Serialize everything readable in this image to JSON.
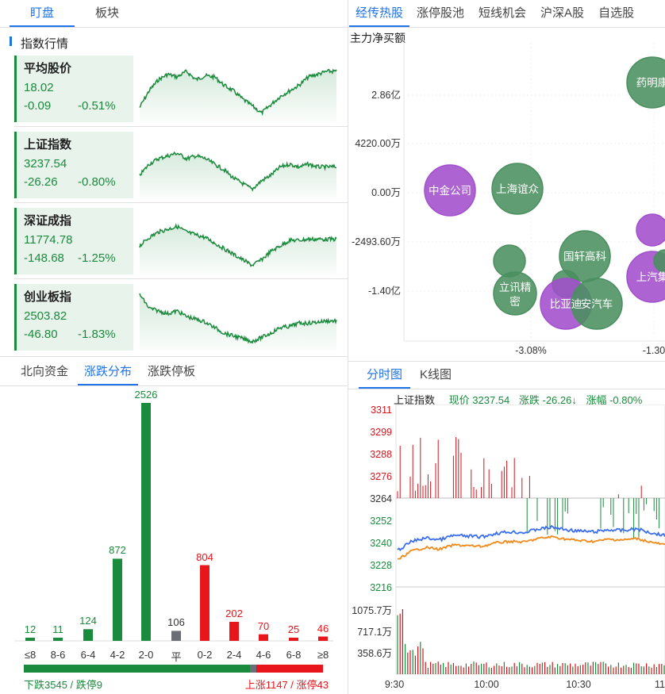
{
  "left_tabs": [
    "盯盘",
    "板块"
  ],
  "section_title": "指数行情",
  "indices": [
    {
      "name": "平均股价",
      "price": "18.02",
      "change": "-0.09",
      "pct": "-0.51%"
    },
    {
      "name": "上证指数",
      "price": "3237.54",
      "change": "-26.26",
      "pct": "-0.80%"
    },
    {
      "name": "深证成指",
      "price": "11774.78",
      "change": "-148.68",
      "pct": "-1.25%"
    },
    {
      "name": "创业板指",
      "price": "2503.82",
      "change": "-46.80",
      "pct": "-1.83%"
    }
  ],
  "dist_tabs": [
    "北向资金",
    "涨跌分布",
    "涨跌停板"
  ],
  "distribution": {
    "categories": [
      "≤8",
      "8-6",
      "6-4",
      "4-2",
      "2-0",
      "平",
      "0-2",
      "2-4",
      "4-6",
      "6-8",
      "≥8"
    ],
    "values": [
      12,
      11,
      124,
      872,
      2526,
      106,
      804,
      202,
      70,
      25,
      46
    ],
    "colors": [
      "#1a8a3c",
      "#1a8a3c",
      "#1a8a3c",
      "#1a8a3c",
      "#1a8a3c",
      "#6b6e75",
      "#e8151b",
      "#e8151b",
      "#e8151b",
      "#e8151b",
      "#e8151b"
    ],
    "down_text": "下跌3545 / 跌停9",
    "up_text": "上涨1147 / 涨停43",
    "down_count": 3545,
    "flat_count": 106,
    "up_count": 1147
  },
  "right_tabs": [
    "经传热股",
    "涨停股池",
    "短线机会",
    "沪深A股",
    "自选股"
  ],
  "bubble": {
    "title": "主力净买额",
    "y_ticks": [
      "2.86亿",
      "4220.00万",
      "0.00万",
      "-2493.60万",
      "-1.40亿"
    ],
    "x_ticks": [
      "-3.08%",
      "-1.30"
    ],
    "bubbles": [
      {
        "label": "药明康",
        "color": "green"
      },
      {
        "label": "中金公司",
        "color": "purple"
      },
      {
        "label": "上海谊众",
        "color": "green"
      },
      {
        "label": "",
        "color": "purple"
      },
      {
        "label": "",
        "color": "green"
      },
      {
        "label": "国轩高科",
        "color": "green"
      },
      {
        "label": "上汽集",
        "color": "purple"
      },
      {
        "label": "立讯精密",
        "color": "green"
      },
      {
        "label": "",
        "color": "green"
      },
      {
        "label": "比亚迪",
        "color": "purple"
      },
      {
        "label": "安汽车",
        "color": "green"
      },
      {
        "label": "",
        "color": "green"
      }
    ]
  },
  "chart_tabs": [
    "分时图",
    "K线图"
  ],
  "intraday": {
    "index_name": "上证指数",
    "price_label": "现价 3237.54",
    "change_label": "涨跌 -26.26↓",
    "pct_label": "涨幅 -0.80%",
    "upper_ticks": [
      "3311",
      "3299",
      "3288",
      "3276",
      "3264"
    ],
    "lower_ticks": [
      "3252",
      "3240",
      "3228",
      "3216"
    ],
    "volume_ticks": [
      "1075.7万",
      "717.1万",
      "358.6万"
    ],
    "time_ticks": [
      "9:30",
      "10:00",
      "10:30",
      "11"
    ]
  },
  "colors": {
    "accent": "#1e73e8",
    "down": "#1a8a3c",
    "up": "#e8151b",
    "flat": "#6b6e75",
    "purple": "#a24fcc",
    "bubble_green": "#4a8f5f",
    "line_blue": "#3a6ef0",
    "line_orange": "#f08a1a"
  }
}
